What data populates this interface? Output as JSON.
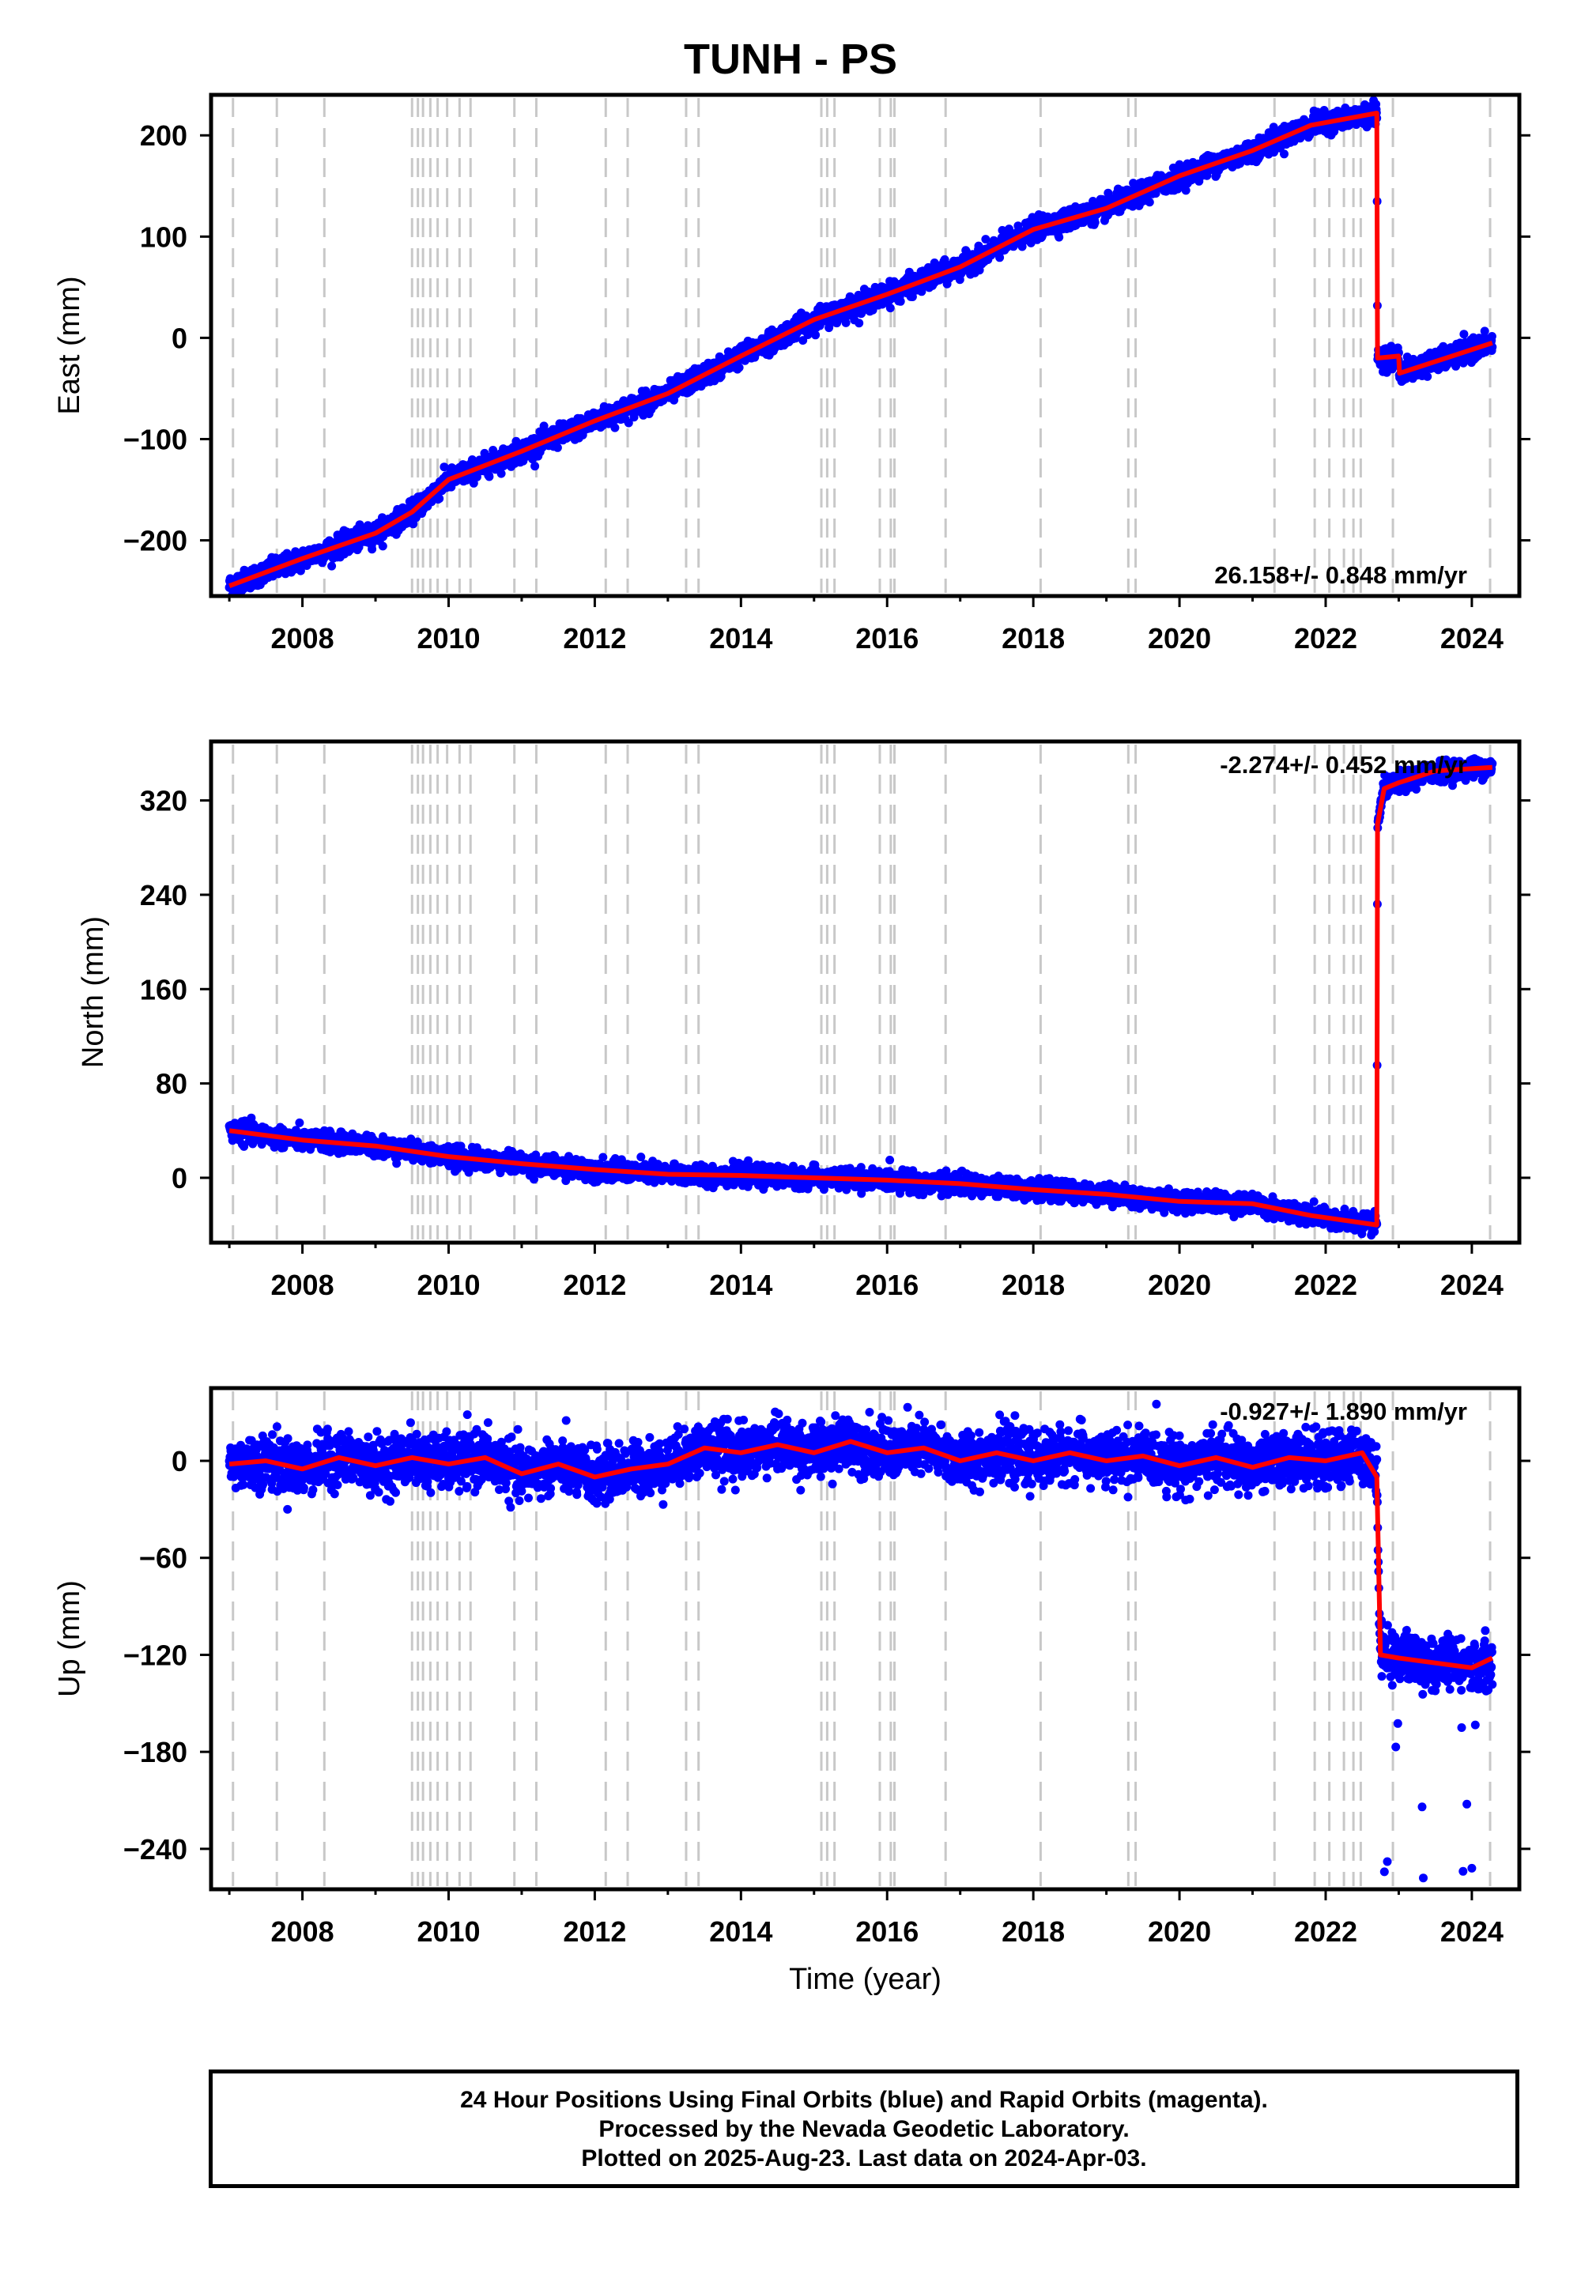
{
  "title": "TUNH - PS",
  "footer": {
    "line1": "24 Hour Positions Using Final Orbits (blue) and Rapid Orbits (magenta).",
    "line2": "Processed by the Nevada Geodetic Laboratory.",
    "line3": "Plotted on 2025-Aug-23. Last data on 2024-Apr-03."
  },
  "colors": {
    "data": "#0000ff",
    "model": "#ff0000",
    "events": "#c8c8c8"
  },
  "chart_data": [
    {
      "type": "scatter",
      "ylabel": "East (mm)",
      "xlabel": "",
      "xlim": [
        2006.75,
        2024.65
      ],
      "ylim": [
        -255,
        240
      ],
      "xticks": [
        2008,
        2010,
        2012,
        2014,
        2016,
        2018,
        2020,
        2022,
        2024
      ],
      "yticks": [
        -200,
        -100,
        0,
        100,
        200
      ],
      "yticklabels": [
        "−200",
        "−100",
        "0",
        "100",
        "200"
      ],
      "rate": "26.158+/- 0.848 mm/yr",
      "rate_position": "bottom-right",
      "model": [
        [
          2007.0,
          -245
        ],
        [
          2008.0,
          -218
        ],
        [
          2009.0,
          -193
        ],
        [
          2009.5,
          -172
        ],
        [
          2010.0,
          -140
        ],
        [
          2011.0,
          -112
        ],
        [
          2012.0,
          -82
        ],
        [
          2013.0,
          -55
        ],
        [
          2014.0,
          -18
        ],
        [
          2015.0,
          18
        ],
        [
          2016.0,
          43
        ],
        [
          2017.0,
          70
        ],
        [
          2018.0,
          107
        ],
        [
          2019.0,
          128
        ],
        [
          2020.0,
          160
        ],
        [
          2021.0,
          185
        ],
        [
          2021.8,
          210
        ],
        [
          2022.7,
          222
        ],
        [
          2022.71,
          -20
        ],
        [
          2023.0,
          -18
        ],
        [
          2023.01,
          -35
        ],
        [
          2024.28,
          -5
        ]
      ],
      "data_noise": 5
    },
    {
      "type": "scatter",
      "ylabel": "North (mm)",
      "xlabel": "",
      "xlim": [
        2006.75,
        2024.65
      ],
      "ylim": [
        -55,
        370
      ],
      "xticks": [
        2008,
        2010,
        2012,
        2014,
        2016,
        2018,
        2020,
        2022,
        2024
      ],
      "yticks": [
        0,
        80,
        160,
        240,
        320
      ],
      "yticklabels": [
        "0",
        "80",
        "160",
        "240",
        "320"
      ],
      "rate": "-2.274+/- 0.452 mm/yr",
      "rate_position": "top-right",
      "model": [
        [
          2007.0,
          40
        ],
        [
          2008.0,
          32
        ],
        [
          2009.0,
          27
        ],
        [
          2010.0,
          18
        ],
        [
          2011.0,
          12
        ],
        [
          2012.0,
          7
        ],
        [
          2013.0,
          3
        ],
        [
          2014.0,
          2
        ],
        [
          2015.0,
          0
        ],
        [
          2016.0,
          -2
        ],
        [
          2017.0,
          -5
        ],
        [
          2018.0,
          -10
        ],
        [
          2019.0,
          -14
        ],
        [
          2020.0,
          -20
        ],
        [
          2021.0,
          -22
        ],
        [
          2021.8,
          -32
        ],
        [
          2022.7,
          -40
        ],
        [
          2022.71,
          300
        ],
        [
          2022.8,
          330
        ],
        [
          2023.0,
          335
        ],
        [
          2023.5,
          345
        ],
        [
          2024.28,
          348
        ]
      ],
      "data_noise": 4
    },
    {
      "type": "scatter",
      "ylabel": "Up (mm)",
      "xlabel": "Time (year)",
      "xlim": [
        2006.75,
        2024.65
      ],
      "ylim": [
        -265,
        45
      ],
      "xticks": [
        2008,
        2010,
        2012,
        2014,
        2016,
        2018,
        2020,
        2022,
        2024
      ],
      "yticks": [
        -240,
        -180,
        -120,
        -60,
        0
      ],
      "yticklabels": [
        "−240",
        "−180",
        "−120",
        "−60",
        "0"
      ],
      "rate": "-0.927+/- 1.890 mm/yr",
      "rate_position": "top-right",
      "model": [
        [
          2007.0,
          -2
        ],
        [
          2007.5,
          0
        ],
        [
          2008.0,
          -5
        ],
        [
          2008.5,
          2
        ],
        [
          2009.0,
          -3
        ],
        [
          2009.5,
          2
        ],
        [
          2010.0,
          -2
        ],
        [
          2010.5,
          2
        ],
        [
          2011.0,
          -8
        ],
        [
          2011.5,
          -2
        ],
        [
          2012.0,
          -10
        ],
        [
          2012.5,
          -5
        ],
        [
          2013.0,
          -2
        ],
        [
          2013.5,
          8
        ],
        [
          2014.0,
          5
        ],
        [
          2014.5,
          10
        ],
        [
          2015.0,
          5
        ],
        [
          2015.5,
          12
        ],
        [
          2016.0,
          5
        ],
        [
          2016.5,
          8
        ],
        [
          2017.0,
          0
        ],
        [
          2017.5,
          5
        ],
        [
          2018.0,
          0
        ],
        [
          2018.5,
          5
        ],
        [
          2019.0,
          0
        ],
        [
          2019.5,
          3
        ],
        [
          2020.0,
          -3
        ],
        [
          2020.5,
          2
        ],
        [
          2021.0,
          -4
        ],
        [
          2021.5,
          2
        ],
        [
          2022.0,
          0
        ],
        [
          2022.5,
          5
        ],
        [
          2022.7,
          -10
        ],
        [
          2022.75,
          -120
        ],
        [
          2023.0,
          -122
        ],
        [
          2023.5,
          -125
        ],
        [
          2024.0,
          -128
        ],
        [
          2024.28,
          -122
        ]
      ],
      "data_noise": 8
    }
  ],
  "event_years": [
    2007.05,
    2007.65,
    2008.3,
    2009.5,
    2009.58,
    2009.65,
    2009.75,
    2009.85,
    2009.98,
    2010.15,
    2010.3,
    2010.9,
    2011.2,
    2012.15,
    2012.45,
    2013.25,
    2013.42,
    2015.1,
    2015.18,
    2015.28,
    2015.9,
    2016.05,
    2016.1,
    2016.8,
    2018.1,
    2019.3,
    2019.4,
    2021.3,
    2021.85,
    2022.05,
    2022.25,
    2022.38,
    2022.48,
    2022.92,
    2024.25
  ]
}
